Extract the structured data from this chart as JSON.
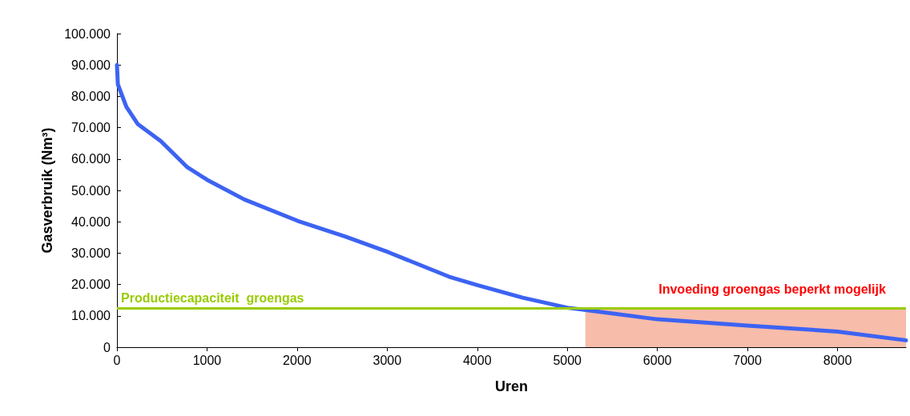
{
  "chart_data": {
    "type": "line",
    "xlabel": "Uren",
    "ylabel": "Gasverbruik (Nm³)",
    "x": [
      0,
      10,
      105,
      233,
      488,
      776,
      1000,
      1415,
      2005,
      2533,
      3012,
      3685,
      4000,
      4505,
      5000,
      6000,
      7000,
      8000,
      8760
    ],
    "series": [
      {
        "color": "#3d63f2",
        "values": [
          90000,
          83800,
          76600,
          71100,
          65700,
          57500,
          53400,
          47100,
          40300,
          35300,
          30300,
          22500,
          19800,
          15800,
          12600,
          8900,
          6900,
          5000,
          2200
        ]
      }
    ],
    "xlim": [
      0,
      8760
    ],
    "xticks": [
      0,
      1000,
      2000,
      3000,
      4000,
      5000,
      6000,
      7000,
      8000
    ],
    "ylim": [
      0,
      100000
    ],
    "yticks": [
      {
        "value": 0,
        "label": "0"
      },
      {
        "value": 10000,
        "label": "10.000"
      },
      {
        "value": 20000,
        "label": "20.000"
      },
      {
        "value": 30000,
        "label": "30.000"
      },
      {
        "value": 40000,
        "label": "40.000"
      },
      {
        "value": 50000,
        "label": "50.000"
      },
      {
        "value": 60000,
        "label": "60.000"
      },
      {
        "value": 70000,
        "label": "70.000"
      },
      {
        "value": 80000,
        "label": "80.000"
      },
      {
        "value": 90000,
        "label": "90.000"
      },
      {
        "value": 100000,
        "label": "100.000"
      }
    ],
    "ref_lines": [
      {
        "axis": "y",
        "value": 12500,
        "label": "Productiecapaciteit  groengas",
        "color": "#99cc00"
      }
    ],
    "bands": [
      {
        "axis": "x",
        "from": 5200,
        "to": 8760,
        "label": "Invoeding groengas beperkt mogelijk",
        "color": "#f8bcaa"
      }
    ],
    "grid": false,
    "marker": "none",
    "line_style": "solid"
  }
}
